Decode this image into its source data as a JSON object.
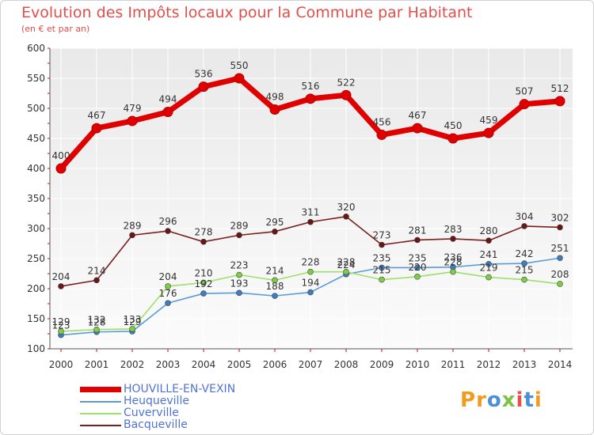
{
  "header": {
    "title": "Evolution des Impôts locaux pour la Commune par Habitant",
    "subtitle": "(en € et par an)"
  },
  "logo": {
    "text": "Proxiti",
    "letters": [
      "P",
      "r",
      "o",
      "x",
      "i",
      "t",
      "i"
    ],
    "colors": [
      "#f39a1c",
      "#f39a1c",
      "#4a90d9",
      "#7dc242",
      "#e94e4e",
      "#4a90d9",
      "#f39a1c"
    ]
  },
  "chart_data": {
    "type": "line",
    "title": "Evolution des Impôts locaux pour la Commune par Habitant",
    "subtitle": "(en € et par an)",
    "xlabel": "",
    "ylabel": "",
    "categories": [
      "2000",
      "2001",
      "2002",
      "2003",
      "2004",
      "2005",
      "2006",
      "2007",
      "2008",
      "2009",
      "2010",
      "2011",
      "2012",
      "2013",
      "2014"
    ],
    "ylim": [
      100,
      600
    ],
    "yticks": [
      100,
      150,
      200,
      250,
      300,
      350,
      400,
      450,
      500,
      550,
      600
    ],
    "grid": true,
    "legend_position": "bottom-left",
    "series": [
      {
        "name": "HOUVILLE-EN-VEXIN",
        "color": "#e00000",
        "point_color": "#e00000",
        "emphasis": "thick",
        "label_position": "above",
        "values": [
          400,
          467,
          479,
          494,
          536,
          550,
          498,
          516,
          522,
          456,
          467,
          450,
          459,
          507,
          512
        ]
      },
      {
        "name": "Heuqueville",
        "color": "#5b9bd5",
        "point_color": "#3d7cc0",
        "emphasis": "normal",
        "label_position": "above",
        "values": [
          123,
          128,
          129,
          176,
          192,
          193,
          188,
          194,
          224,
          235,
          235,
          236,
          241,
          242,
          251
        ]
      },
      {
        "name": "Cuverville",
        "color": "#9ddf6a",
        "point_color": "#7ccf45",
        "emphasis": "normal",
        "label_position": "above",
        "values": [
          129,
          132,
          133,
          204,
          210,
          223,
          214,
          228,
          228,
          215,
          220,
          228,
          219,
          215,
          208
        ]
      },
      {
        "name": "Bacqueville",
        "color": "#7a1f1f",
        "point_color": "#6b1515",
        "emphasis": "normal",
        "label_position": "above",
        "values": [
          204,
          214,
          289,
          296,
          278,
          289,
          295,
          311,
          320,
          273,
          281,
          283,
          280,
          304,
          302
        ]
      }
    ]
  }
}
